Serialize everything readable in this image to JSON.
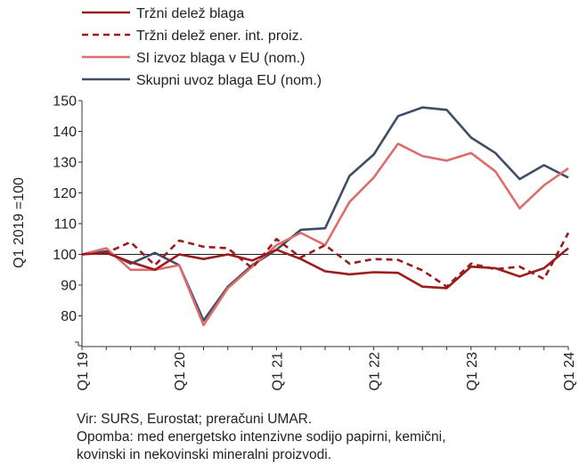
{
  "chart_data": {
    "type": "line",
    "ylabel": "Q1 2019 =100",
    "ylim": [
      70,
      150
    ],
    "yticks": [
      80,
      90,
      100,
      110,
      120,
      130,
      140,
      150
    ],
    "xtick_labels": [
      "Q1 19",
      "Q1 20",
      "Q1 21",
      "Q1 22",
      "Q1 23",
      "Q1 24"
    ],
    "x": [
      "Q1 19",
      "Q2 19",
      "Q3 19",
      "Q4 19",
      "Q1 20",
      "Q2 20",
      "Q3 20",
      "Q4 20",
      "Q1 21",
      "Q2 21",
      "Q3 21",
      "Q4 21",
      "Q1 22",
      "Q2 22",
      "Q3 22",
      "Q4 22",
      "Q1 23",
      "Q2 23",
      "Q3 23",
      "Q4 23",
      "Q1 24"
    ],
    "reference_line": 100,
    "legend_position": "top-left",
    "series": [
      {
        "name": "Tržni delež blaga",
        "color": "#9b1c1c",
        "dash": "solid",
        "values": [
          100.0,
          100.5,
          97.5,
          95.0,
          100.0,
          98.5,
          100.0,
          98.0,
          101.5,
          98.5,
          94.5,
          93.5,
          94.2,
          94.0,
          89.5,
          89.0,
          96.0,
          95.5,
          92.8,
          95.5,
          102.0
        ]
      },
      {
        "name": "Tržni delež ener. int. proiz.",
        "color": "#9b1c1c",
        "dash": "dashed",
        "values": [
          100.0,
          100.5,
          104.0,
          96.5,
          104.5,
          102.5,
          102.0,
          95.5,
          105.0,
          99.0,
          103.0,
          97.0,
          98.5,
          98.2,
          94.8,
          89.5,
          97.0,
          95.2,
          96.0,
          92.0,
          107.0
        ]
      },
      {
        "name": "SI izvoz blaga v EU (nom.)",
        "color": "#dd6d6d",
        "dash": "solid",
        "values": [
          100.0,
          102.0,
          95.0,
          95.0,
          96.5,
          77.0,
          89.0,
          96.0,
          103.0,
          107.0,
          103.0,
          117.0,
          125.0,
          136.0,
          132.0,
          130.5,
          133.0,
          127.0,
          115.0,
          122.5,
          128.0
        ]
      },
      {
        "name": "Skupni uvoz blaga EU (nom.)",
        "color": "#3e4e66",
        "dash": "solid",
        "values": [
          100.0,
          101.0,
          97.0,
          100.5,
          96.5,
          78.5,
          89.5,
          96.5,
          101.5,
          108.0,
          108.5,
          125.5,
          132.5,
          145.0,
          147.8,
          147.0,
          138.0,
          133.0,
          124.5,
          129.0,
          125.0
        ]
      }
    ]
  },
  "notes": {
    "source": "Vir: SURS, Eurostat; preračuni UMAR.",
    "note_line1": "Opomba: med energetsko intenzivne sodijo papirni, kemični,",
    "note_line2": "kovinski in nekovinski mineralni proizvodi."
  }
}
